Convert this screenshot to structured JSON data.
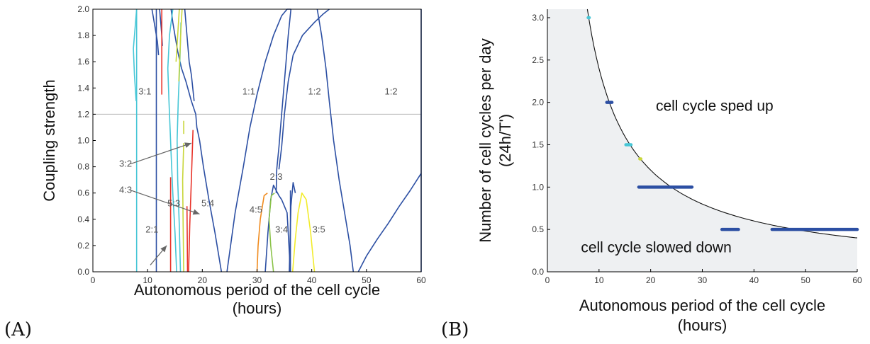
{
  "panels": [
    "(A)",
    "(B)"
  ],
  "chart_data": [
    {
      "type": "line",
      "panel": "(A)",
      "xlabel": "Autonomous period of the cell cycle",
      "xlabel2": "(hours)",
      "ylabel": "Coupling strength",
      "xlim": [
        0,
        60
      ],
      "ylim": [
        0,
        2.0
      ],
      "xticks": [
        0,
        10,
        20,
        30,
        40,
        50,
        60
      ],
      "yticks": [
        0.0,
        0.2,
        0.4,
        0.6,
        0.8,
        1.0,
        1.2,
        1.4,
        1.6,
        1.8,
        2.0
      ],
      "reference_line_y": 1.2,
      "region_labels": [
        {
          "text": "3:1",
          "x": 9.5,
          "y": 1.35
        },
        {
          "text": "1:1",
          "x": 28.5,
          "y": 1.35
        },
        {
          "text": "1:2",
          "x": 40.5,
          "y": 1.35
        },
        {
          "text": "1:2",
          "x": 54.5,
          "y": 1.35
        },
        {
          "text": "2:3",
          "x": 33.5,
          "y": 0.7
        },
        {
          "text": "4:5",
          "x": 29.8,
          "y": 0.45
        },
        {
          "text": "3:4",
          "x": 34.5,
          "y": 0.3
        },
        {
          "text": "3:5",
          "x": 41.3,
          "y": 0.3
        },
        {
          "text": "5:3",
          "x": 14.8,
          "y": 0.5
        },
        {
          "text": "5:4",
          "x": 21.0,
          "y": 0.5
        },
        {
          "text": "2:1",
          "x": 10.8,
          "y": 0.3
        }
      ],
      "arrow_labels": [
        {
          "text": "3:2",
          "x": 4.8,
          "y": 0.8,
          "to": [
            18.0,
            0.98
          ]
        },
        {
          "text": "4:3",
          "x": 4.8,
          "y": 0.6,
          "to": [
            19.5,
            0.44
          ]
        },
        {
          "text": "",
          "x": 10.5,
          "y": 0.03,
          "to": [
            13.5,
            0.2
          ]
        }
      ],
      "series": [
        {
          "color": "#2c4fa3",
          "x": [
            23.5,
            22.3,
            21.2,
            20.2,
            19.5,
            19.0,
            18.8
          ],
          "y": [
            0.0,
            0.3,
            0.55,
            0.8,
            1.0,
            1.1,
            1.2
          ]
        },
        {
          "color": "#2c4fa3",
          "x": [
            24.5,
            26,
            27.5,
            28.7,
            30,
            31.5,
            33,
            34.5,
            35.5,
            36.2
          ],
          "y": [
            0.0,
            0.45,
            0.8,
            1.1,
            1.35,
            1.6,
            1.8,
            1.95,
            2.0,
            2.0
          ]
        },
        {
          "color": "#2c4fa3",
          "x": [
            18.8,
            18.0,
            17.0,
            16.2,
            15.5,
            15.0,
            14.6,
            14.3
          ],
          "y": [
            1.2,
            1.3,
            1.45,
            1.55,
            1.68,
            1.8,
            1.9,
            2.0
          ]
        },
        {
          "color": "#2c4fa3",
          "x": [
            16.8,
            17.2,
            17.6,
            18.0,
            18.5
          ],
          "y": [
            2.0,
            1.8,
            1.6,
            1.5,
            1.3
          ]
        },
        {
          "color": "#2c4fa3",
          "x": [
            36.2,
            35.7,
            35.1,
            34.5,
            34.0,
            33.6,
            33.5
          ],
          "y": [
            2.0,
            1.8,
            1.5,
            1.2,
            0.95,
            0.78,
            0.6
          ]
        },
        {
          "color": "#2c4fa3",
          "x": [
            34.0,
            34.5,
            35.0,
            35.7,
            36.6,
            38.3,
            40.5,
            42,
            43.2
          ],
          "y": [
            0.78,
            0.95,
            1.2,
            1.45,
            1.65,
            1.8,
            1.9,
            1.96,
            2.0
          ]
        },
        {
          "color": "#2c4fa3",
          "x": [
            41.0,
            41.8,
            42.6,
            43.2,
            44.0,
            45.0,
            46.0,
            47.0,
            47.6
          ],
          "y": [
            2.0,
            1.8,
            1.55,
            1.3,
            1.0,
            0.7,
            0.45,
            0.2,
            0.0
          ]
        },
        {
          "color": "#2c4fa3",
          "x": [
            48.5,
            50,
            52,
            54,
            56,
            58,
            60
          ],
          "y": [
            0.0,
            0.12,
            0.25,
            0.37,
            0.5,
            0.62,
            0.75
          ]
        },
        {
          "color": "#2c4fa3",
          "x": [
            60.0,
            60.0
          ],
          "y": [
            0.0,
            2.0
          ]
        },
        {
          "color": "#2c4fa3",
          "x": [
            11.6,
            11.6
          ],
          "y": [
            0.0,
            2.0
          ]
        },
        {
          "color": "#2c4fa3",
          "x": [
            10.8,
            11.0,
            11.4,
            11.8,
            12.0
          ],
          "y": [
            2.0,
            1.95,
            1.85,
            1.75,
            1.65
          ]
        },
        {
          "color": "#2c4fa3",
          "x": [
            12.2,
            12.4,
            12.6,
            12.7
          ],
          "y": [
            2.0,
            1.9,
            1.8,
            1.72
          ]
        },
        {
          "color": "#2c4fa3",
          "x": [
            31.5,
            32.0,
            32.5,
            33.0,
            33.5,
            34.0,
            34.5,
            35.0,
            35.5,
            36.1
          ],
          "y": [
            0.0,
            0.3,
            0.55,
            0.66,
            0.62,
            0.58,
            0.55,
            0.5,
            0.45,
            0.0
          ]
        },
        {
          "color": "#2c4fa3",
          "x": [
            35.9,
            36.2,
            36.6,
            37.0
          ],
          "y": [
            0.0,
            0.5,
            0.68,
            0.6
          ]
        },
        {
          "color": "#2c4fa3",
          "x": [
            36.1,
            36.1
          ],
          "y": [
            0.0,
            0.62
          ]
        },
        {
          "color": "#47c6d6",
          "x": [
            8.0,
            8.0
          ],
          "y": [
            0.0,
            2.0
          ]
        },
        {
          "color": "#47c6d6",
          "x": [
            8.0,
            7.7,
            7.4,
            7.6,
            7.9
          ],
          "y": [
            2.0,
            1.85,
            1.7,
            1.5,
            1.3
          ]
        },
        {
          "color": "#47c6d6",
          "x": [
            15.3,
            15.0,
            14.6,
            14.3,
            14.1,
            13.9,
            13.7,
            14.0,
            14.6
          ],
          "y": [
            0.0,
            0.3,
            0.6,
            0.9,
            1.1,
            1.3,
            1.55,
            1.8,
            2.0
          ]
        },
        {
          "color": "#47c6d6",
          "x": [
            16.0,
            15.8,
            15.5,
            15.4,
            15.6,
            15.9,
            16.1
          ],
          "y": [
            0.0,
            0.35,
            0.7,
            1.0,
            1.3,
            1.6,
            1.9
          ]
        },
        {
          "color": "#e8332a",
          "x": [
            17.5,
            17.7,
            18.0,
            18.3
          ],
          "y": [
            0.0,
            0.35,
            0.7,
            1.08
          ]
        },
        {
          "color": "#e8332a",
          "x": [
            17.3,
            17.2
          ],
          "y": [
            0.0,
            0.5
          ]
        },
        {
          "color": "#e8332a",
          "x": [
            12.6,
            12.6
          ],
          "y": [
            1.35,
            2.0
          ]
        },
        {
          "color": "#e8332a",
          "x": [
            14.2,
            14.2
          ],
          "y": [
            0.0,
            0.72
          ]
        },
        {
          "color": "#c8d63a",
          "x": [
            15.7,
            15.9,
            16.1,
            16.3
          ],
          "y": [
            1.45,
            1.65,
            1.85,
            2.0
          ]
        },
        {
          "color": "#c8d63a",
          "x": [
            15.2,
            15.5,
            15.8
          ],
          "y": [
            1.6,
            1.8,
            2.0
          ]
        },
        {
          "color": "#c8d63a",
          "x": [
            16.6,
            16.5,
            16.4,
            16.6
          ],
          "y": [
            0.0,
            0.35,
            0.7,
            0.98
          ]
        },
        {
          "color": "#c8d63a",
          "x": [
            16.6,
            16.6
          ],
          "y": [
            1.05,
            1.15
          ]
        },
        {
          "color": "#f08b1e",
          "x": [
            30.0,
            30.2,
            30.6,
            31.3,
            31.9
          ],
          "y": [
            0.0,
            0.2,
            0.4,
            0.58,
            0.6
          ]
        },
        {
          "color": "#8bc34a",
          "x": [
            33.0,
            32.5,
            32.2,
            32.6,
            33.2
          ],
          "y": [
            0.0,
            0.2,
            0.4,
            0.58,
            0.6
          ]
        },
        {
          "color": "#f2ec2c",
          "x": [
            36.5,
            37.0,
            37.5,
            38.2,
            39.0,
            39.8,
            40.5
          ],
          "y": [
            0.0,
            0.25,
            0.45,
            0.6,
            0.55,
            0.3,
            0.0
          ]
        }
      ]
    },
    {
      "type": "scatter",
      "panel": "(B)",
      "xlabel": "Autonomous period of the cell cycle",
      "xlabel2": "(hours)",
      "ylabel": "Number of cell cycles per day",
      "ylabel2": "(24h/T')",
      "xlim": [
        0,
        60
      ],
      "ylim": [
        0,
        3.1
      ],
      "xticks": [
        0,
        10,
        20,
        30,
        40,
        50,
        60
      ],
      "yticks": [
        0.0,
        0.5,
        1.0,
        1.5,
        2.0,
        2.5,
        3.0
      ],
      "curve": "y = 24/x",
      "annotations": [
        {
          "text": "cell cycle sped up",
          "x": 21,
          "y": 1.9
        },
        {
          "text": "cell cycle slowed down",
          "x": 6.5,
          "y": 0.23
        }
      ],
      "segments": [
        {
          "color": "#47c6d6",
          "x": [
            7.9,
            8.1
          ],
          "y": 3.0
        },
        {
          "color": "#2c4fa3",
          "x": [
            11.5,
            12.5
          ],
          "y": 2.0
        },
        {
          "color": "#47c6d6",
          "x": [
            15.2,
            16.2
          ],
          "y": 1.5
        },
        {
          "color": "#c8d63a",
          "x": [
            17.9,
            18.1
          ],
          "y": 1.333
        },
        {
          "color": "#2c4fa3",
          "x": [
            17.7,
            28.0
          ],
          "y": 1.0
        },
        {
          "color": "#2c4fa3",
          "x": [
            33.8,
            37.0
          ],
          "y": 0.5
        },
        {
          "color": "#2c4fa3",
          "x": [
            43.5,
            60.0
          ],
          "y": 0.5
        }
      ]
    }
  ]
}
